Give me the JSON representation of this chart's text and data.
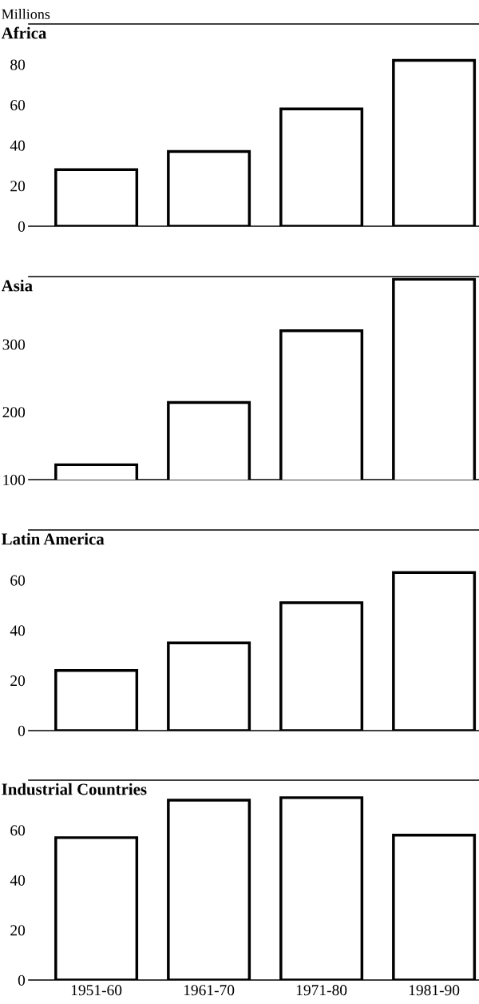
{
  "chart_data": [
    {
      "type": "bar",
      "title": "Africa",
      "ylabel": "Millions",
      "categories": [
        "1951-60",
        "1961-70",
        "1971-80",
        "1981-90"
      ],
      "values": [
        28,
        37,
        58,
        82
      ],
      "color": "#ffffff",
      "ylim": [
        0,
        100
      ],
      "yticks": [
        0,
        20,
        40,
        60,
        80
      ],
      "tick_labels": "y"
    },
    {
      "type": "bar",
      "title": "Asia",
      "categories": [
        "1951-60",
        "1961-70",
        "1971-80",
        "1981-90"
      ],
      "values": [
        122,
        214,
        320,
        396
      ],
      "color": "#ffffff",
      "ylim": [
        100,
        400
      ],
      "yticks": [
        100,
        200,
        300
      ],
      "tick_labels": "y"
    },
    {
      "type": "bar",
      "title": "Latin America",
      "categories": [
        "1951-60",
        "1961-70",
        "1971-80",
        "1981-90"
      ],
      "values": [
        24,
        35,
        51,
        63
      ],
      "color": "#ffffff",
      "ylim": [
        0,
        80
      ],
      "yticks": [
        0,
        20,
        40,
        60
      ],
      "tick_labels": "y"
    },
    {
      "type": "bar",
      "title": "Industrial Countries",
      "categories": [
        "1951-60",
        "1961-70",
        "1971-80",
        "1981-90"
      ],
      "values": [
        57,
        72,
        73,
        58
      ],
      "color": "#ffffff",
      "ylim": [
        0,
        80
      ],
      "yticks": [
        0,
        20,
        40,
        60
      ]
    }
  ]
}
